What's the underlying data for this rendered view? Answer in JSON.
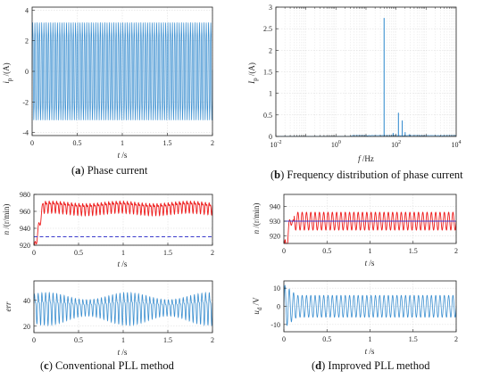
{
  "captions": {
    "a": {
      "tag": "a",
      "text": "Phase current"
    },
    "b": {
      "tag": "b",
      "text": "Frequency distribution of phase current"
    },
    "c": {
      "tag": "c",
      "text": "Conventional PLL method"
    },
    "d": {
      "tag": "d",
      "text": "Improved PLL method"
    }
  },
  "chart_data": [
    {
      "id": "a",
      "type": "line",
      "xlabel": "t /s",
      "ylabel": "i_p /(A)",
      "xlim": [
        0,
        2
      ],
      "ylim": [
        -4.2,
        4.2
      ],
      "xticks": [
        "0",
        "0.5",
        "1",
        "1.5",
        "2"
      ],
      "yticks": [
        "4",
        "2",
        "0",
        "-2",
        "-4"
      ],
      "series": [
        {
          "color": "#3b8fd0",
          "frequency_hz": 40,
          "amplitude": 3.3,
          "offset": 0,
          "style": "dense sinusoid"
        }
      ],
      "grid": true
    },
    {
      "id": "b",
      "type": "bar",
      "xlabel": "f /Hz",
      "ylabel": "I_p /(A)",
      "xscale": "log",
      "xlim": [
        0.01,
        10000
      ],
      "ylim": [
        0,
        3
      ],
      "xticks": [
        "10^-2",
        "10^0",
        "10^2",
        "10^4"
      ],
      "yticks": [
        "3",
        "2.5",
        "2",
        "1.5",
        "1",
        "0.5",
        "0"
      ],
      "x": [
        40,
        80,
        120,
        160,
        200,
        280
      ],
      "values": [
        2.75,
        0.08,
        0.55,
        0.37,
        0.1,
        0.05
      ],
      "color": "#3b8fd0",
      "grid": true
    },
    {
      "id": "c_speed",
      "type": "line",
      "xlabel": "t /s",
      "ylabel": "n /(r/min)",
      "xlim": [
        0,
        2
      ],
      "ylim": [
        920,
        980
      ],
      "xticks": [
        "0",
        "0.5",
        "1",
        "1.5",
        "2"
      ],
      "yticks": [
        "980",
        "960",
        "940",
        "920"
      ],
      "series": [
        {
          "color": "#ee1c1c",
          "mean": 965,
          "amplitude": 8,
          "frequency_hz": 24,
          "start_value": 912
        },
        {
          "color": "#3b3bcc",
          "style": "dashed",
          "value": 930
        }
      ],
      "grid": true
    },
    {
      "id": "c_err",
      "type": "line",
      "xlabel": "t /s",
      "ylabel": "err",
      "xlim": [
        0,
        2
      ],
      "ylim": [
        15,
        55
      ],
      "xticks": [
        "0",
        "0.5",
        "1",
        "1.5",
        "2"
      ],
      "yticks": [
        "40",
        "20"
      ],
      "series": [
        {
          "color": "#3b8fd0",
          "mean": 35,
          "amplitude": 13,
          "frequency_hz": 24
        }
      ],
      "grid": true
    },
    {
      "id": "d_speed",
      "type": "line",
      "xlabel": "t /s",
      "ylabel": "n /(r/min)",
      "xlim": [
        0,
        2
      ],
      "ylim": [
        915,
        948
      ],
      "xticks": [
        "0",
        "0.5",
        "1",
        "1.5",
        "2"
      ],
      "yticks": [
        "940",
        "930",
        "920"
      ],
      "series": [
        {
          "color": "#ee1c1c",
          "mean": 930,
          "amplitude": 6,
          "frequency_hz": 20,
          "start_value": 904
        },
        {
          "color": "#3b3bcc",
          "style": "solid",
          "value": 930
        }
      ],
      "grid": true
    },
    {
      "id": "d_ud",
      "type": "line",
      "xlabel": "t /s",
      "ylabel": "u_d /V",
      "xlim": [
        0,
        2
      ],
      "ylim": [
        -14,
        14
      ],
      "xticks": [
        "0",
        "0.5",
        "1",
        "1.5",
        "2"
      ],
      "yticks": [
        "10",
        "0",
        "-10"
      ],
      "series": [
        {
          "color": "#3b8fd0",
          "mean": 0,
          "amplitude": 6,
          "frequency_hz": 20,
          "start_amplitude": 12
        }
      ],
      "grid": true
    }
  ]
}
